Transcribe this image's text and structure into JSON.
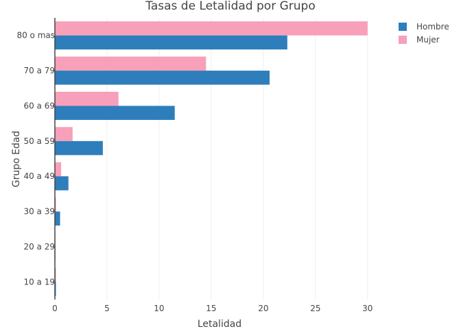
{
  "chart_data": {
    "type": "bar",
    "orientation": "horizontal",
    "title": "Tasas de Letalidad por Grupo",
    "xlabel": "Letalidad",
    "ylabel": "Grupo Edad",
    "xlim": [
      0,
      31
    ],
    "xticks": [
      0,
      5,
      10,
      15,
      20,
      25,
      30
    ],
    "categories": [
      "10 a 19",
      "20 a 29",
      "30 a 39",
      "40 a 49",
      "50 a 59",
      "60 a 69",
      "70 a 79",
      "80 o mas"
    ],
    "series": [
      {
        "name": "Hombre",
        "color": "#2e7ebb",
        "values": [
          0.1,
          0.05,
          0.5,
          1.3,
          4.6,
          11.5,
          20.6,
          22.3
        ]
      },
      {
        "name": "Mujer",
        "color": "#f89fb9",
        "values": [
          0.1,
          0.05,
          0.1,
          0.6,
          1.7,
          6.1,
          14.5,
          30.0
        ]
      }
    ],
    "legend_position": "top-right",
    "grid": true
  }
}
